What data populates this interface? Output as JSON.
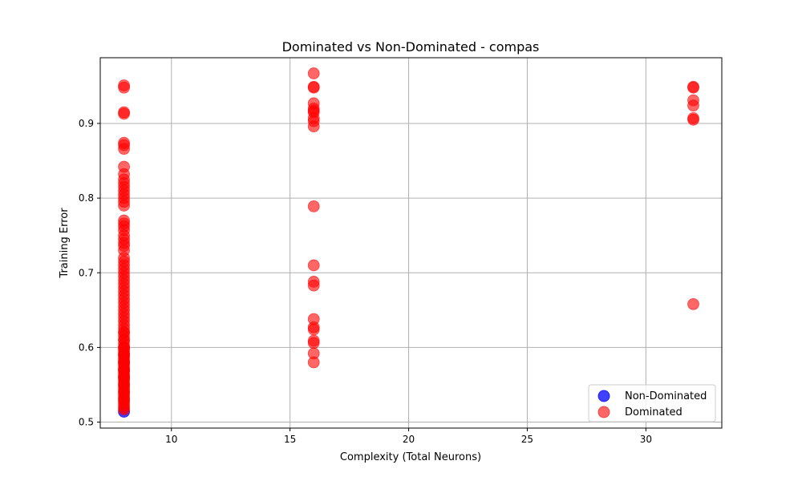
{
  "chart_data": {
    "type": "scatter",
    "title": "Dominated vs Non-Dominated - compas",
    "xlabel": "Complexity (Total Neurons)",
    "ylabel": "Training Error",
    "xlim": [
      7,
      33.2
    ],
    "ylim": [
      0.492,
      0.988
    ],
    "xticks": [
      10,
      15,
      20,
      25,
      30
    ],
    "yticks": [
      0.5,
      0.6,
      0.7,
      0.8,
      0.9
    ],
    "ytick_labels": [
      "0.5",
      "0.6",
      "0.7",
      "0.8",
      "0.9"
    ],
    "grid": true,
    "legend_position": "bottom-right",
    "series": [
      {
        "name": "Non-Dominated",
        "color": "#0000ff",
        "alpha": 0.75,
        "x": [
          8
        ],
        "y": [
          0.514
        ]
      },
      {
        "name": "Dominated",
        "color": "#ff0000",
        "alpha": 0.6,
        "x": [
          8,
          8,
          8,
          8,
          8,
          8,
          8,
          8,
          8,
          8,
          8,
          8,
          8,
          8,
          8,
          8,
          8,
          8,
          8,
          8,
          8,
          8,
          8,
          8,
          8,
          8,
          8,
          8,
          8,
          8,
          8,
          8,
          8,
          8,
          8,
          8,
          8,
          8,
          8,
          8,
          8,
          8,
          8,
          8,
          8,
          8,
          8,
          8,
          8,
          8,
          8,
          8,
          8,
          8,
          8,
          8,
          8,
          8,
          8,
          8,
          8,
          8,
          8,
          8,
          8,
          8,
          8,
          8,
          8,
          8,
          8,
          8,
          8,
          8,
          8,
          8,
          8,
          8,
          8,
          8,
          8,
          8,
          8,
          8,
          8,
          8,
          8,
          8,
          8,
          8,
          8,
          8,
          8,
          8,
          16,
          16,
          16,
          16,
          16,
          16,
          16,
          16,
          16,
          16,
          16,
          16,
          16,
          16,
          16,
          16,
          16,
          16,
          16,
          16,
          16,
          32,
          32,
          32,
          32,
          32,
          32,
          32
        ],
        "y": [
          0.951,
          0.948,
          0.915,
          0.913,
          0.874,
          0.871,
          0.866,
          0.842,
          0.832,
          0.825,
          0.82,
          0.815,
          0.81,
          0.805,
          0.8,
          0.795,
          0.79,
          0.77,
          0.766,
          0.762,
          0.757,
          0.75,
          0.745,
          0.74,
          0.736,
          0.73,
          0.72,
          0.715,
          0.71,
          0.705,
          0.7,
          0.695,
          0.69,
          0.685,
          0.68,
          0.675,
          0.67,
          0.665,
          0.66,
          0.655,
          0.65,
          0.645,
          0.64,
          0.635,
          0.63,
          0.625,
          0.62,
          0.615,
          0.61,
          0.605,
          0.6,
          0.597,
          0.594,
          0.591,
          0.588,
          0.585,
          0.582,
          0.579,
          0.576,
          0.573,
          0.57,
          0.567,
          0.564,
          0.561,
          0.558,
          0.555,
          0.552,
          0.549,
          0.546,
          0.543,
          0.54,
          0.537,
          0.534,
          0.531,
          0.528,
          0.525,
          0.522,
          0.519,
          0.517,
          0.6,
          0.59,
          0.58,
          0.57,
          0.56,
          0.55,
          0.54,
          0.53,
          0.62,
          0.61,
          0.6,
          0.59,
          0.58,
          0.57,
          0.56,
          0.967,
          0.949,
          0.948,
          0.927,
          0.92,
          0.917,
          0.915,
          0.907,
          0.903,
          0.896,
          0.789,
          0.71,
          0.688,
          0.683,
          0.638,
          0.627,
          0.624,
          0.609,
          0.606,
          0.592,
          0.58,
          0.949,
          0.948,
          0.931,
          0.924,
          0.907,
          0.905,
          0.658
        ]
      }
    ]
  }
}
